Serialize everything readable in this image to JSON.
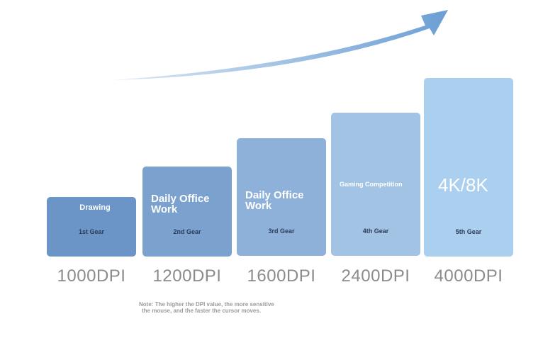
{
  "gears": [
    {
      "title": "Drawing",
      "gear": "1st Gear",
      "dpi": "1000DPI"
    },
    {
      "title": "Daily Office Work",
      "gear": "2nd Gear",
      "dpi": "1200DPI"
    },
    {
      "title": "Daily Office Work",
      "gear": "3rd Gear",
      "dpi": "1600DPI"
    },
    {
      "title": "Gaming Competition",
      "gear": "4th Gear",
      "dpi": "2400DPI"
    },
    {
      "title": "4K/8K",
      "gear": "5th Gear",
      "dpi": "4000DPI"
    }
  ],
  "note": [
    "Note: The higher the DPI value, the more sensitive",
    "the mouse, and the faster the cursor moves."
  ]
}
